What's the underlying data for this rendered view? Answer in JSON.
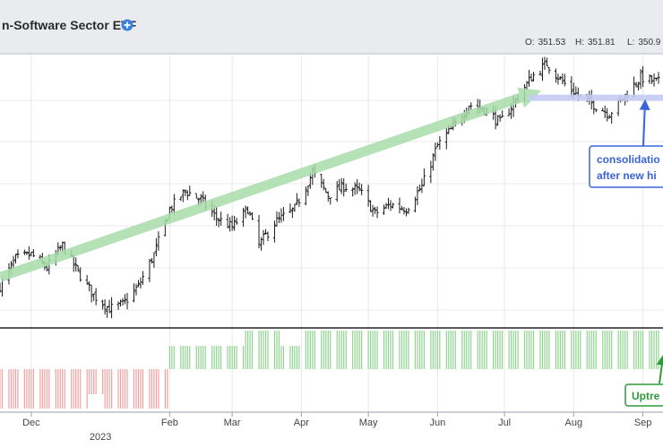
{
  "header": {
    "title": "n-Software Sector ETF",
    "ohlc": [
      {
        "label": "O:",
        "value": "351.53"
      },
      {
        "label": "H:",
        "value": "351.81"
      },
      {
        "label": "L:",
        "value": "350.9"
      }
    ]
  },
  "colors": {
    "header_bg": "#e9ebef",
    "add_icon": "#3b82e0",
    "bar": "#1a1a1a",
    "trend_arrow": "#a9dcaa",
    "consolidation_line": "#c4ccf2",
    "callout_blue": "#3a64d8",
    "callout_green": "#2f9a3a",
    "indicator_up": "#8fd48f",
    "indicator_down": "#f1a1a1",
    "grid": "#e8e8e8"
  },
  "chart_data": [
    {
      "type": "ohlc",
      "price_range": [
        296,
        356
      ],
      "x_ticks": [
        {
          "label": "Dec",
          "date": "2022-12-01"
        },
        {
          "label": "2023",
          "date": "2023-01-01",
          "sub": true
        },
        {
          "label": "Feb",
          "date": "2023-02-01"
        },
        {
          "label": "Mar",
          "date": "2023-03-01"
        },
        {
          "label": "Apr",
          "date": "2023-04-01"
        },
        {
          "label": "May",
          "date": "2023-05-01"
        },
        {
          "label": "Jun",
          "date": "2023-06-01"
        },
        {
          "label": "Jul",
          "date": "2023-07-01"
        },
        {
          "label": "Aug",
          "date": "2023-08-01"
        },
        {
          "label": "Sep",
          "date": "2023-09-01"
        }
      ],
      "close_path": [
        [
          "2022-11-17",
          305
        ],
        [
          "2022-11-24",
          311
        ],
        [
          "2022-12-01",
          312
        ],
        [
          "2022-12-08",
          309
        ],
        [
          "2022-12-15",
          314
        ],
        [
          "2022-12-22",
          308
        ],
        [
          "2022-12-29",
          303
        ],
        [
          "2023-01-05",
          300
        ],
        [
          "2023-01-11",
          301
        ],
        [
          "2023-01-18",
          305
        ],
        [
          "2023-01-25",
          312
        ],
        [
          "2023-02-01",
          322
        ],
        [
          "2023-02-08",
          326
        ],
        [
          "2023-02-15",
          324
        ],
        [
          "2023-02-22",
          320
        ],
        [
          "2023-03-01",
          318
        ],
        [
          "2023-03-08",
          322
        ],
        [
          "2023-03-13",
          314
        ],
        [
          "2023-03-20",
          319
        ],
        [
          "2023-03-29",
          322
        ],
        [
          "2023-04-06",
          330
        ],
        [
          "2023-04-13",
          325
        ],
        [
          "2023-04-20",
          327
        ],
        [
          "2023-04-27",
          326
        ],
        [
          "2023-05-04",
          321
        ],
        [
          "2023-05-11",
          323
        ],
        [
          "2023-05-18",
          322
        ],
        [
          "2023-05-25",
          327
        ],
        [
          "2023-06-01",
          336
        ],
        [
          "2023-06-08",
          340
        ],
        [
          "2023-06-15",
          345
        ],
        [
          "2023-06-22",
          344
        ],
        [
          "2023-06-29",
          341
        ],
        [
          "2023-07-06",
          346
        ],
        [
          "2023-07-13",
          351
        ],
        [
          "2023-07-20",
          354
        ],
        [
          "2023-07-27",
          350
        ],
        [
          "2023-08-03",
          347
        ],
        [
          "2023-08-10",
          345
        ],
        [
          "2023-08-17",
          343
        ],
        [
          "2023-08-24",
          347
        ],
        [
          "2023-08-31",
          351
        ],
        [
          "2023-09-07",
          350
        ]
      ],
      "annotations": [
        {
          "type": "trend-arrow",
          "from": [
            "2022-11-17",
            307
          ],
          "to": [
            "2023-07-11",
            347
          ]
        },
        {
          "type": "level-line",
          "from": "2023-07-12",
          "to": "2023-09-10",
          "value": 346.5
        },
        {
          "type": "callout",
          "lines": [
            "consolidatio",
            "after new hi"
          ],
          "target": [
            "2023-09-02",
            346.5
          ]
        }
      ]
    },
    {
      "type": "histogram",
      "segments": [
        {
          "from": "2022-11-17",
          "to": "2023-01-31",
          "sign": "negative"
        },
        {
          "from": "2023-02-01",
          "to": "2023-09-10",
          "sign": "positive"
        }
      ],
      "callout": {
        "text": "Uptre"
      }
    }
  ]
}
